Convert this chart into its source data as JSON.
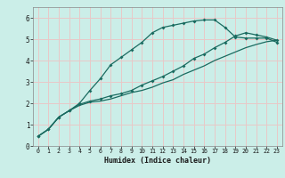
{
  "background_color": "#cbeee8",
  "grid_color": "#e8c8c8",
  "line_color": "#1a6b60",
  "xlabel": "Humidex (Indice chaleur)",
  "xlim": [
    -0.5,
    23.5
  ],
  "ylim": [
    0,
    6.5
  ],
  "yticks": [
    0,
    1,
    2,
    3,
    4,
    5,
    6
  ],
  "xticks": [
    0,
    1,
    2,
    3,
    4,
    5,
    6,
    7,
    8,
    9,
    10,
    11,
    12,
    13,
    14,
    15,
    16,
    17,
    18,
    19,
    20,
    21,
    22,
    23
  ],
  "line1_x": [
    0,
    1,
    2,
    3,
    4,
    5,
    6,
    7,
    8,
    9,
    10,
    11,
    12,
    13,
    14,
    15,
    16,
    17,
    18,
    19,
    20,
    21,
    22,
    23
  ],
  "line1_y": [
    0.45,
    0.78,
    1.35,
    1.65,
    2.0,
    2.6,
    3.15,
    3.8,
    4.15,
    4.5,
    4.85,
    5.3,
    5.55,
    5.65,
    5.75,
    5.85,
    5.9,
    5.9,
    5.55,
    5.1,
    5.05,
    5.05,
    5.05,
    4.85
  ],
  "line2_x": [
    0,
    1,
    2,
    3,
    4,
    5,
    6,
    7,
    8,
    9,
    10,
    11,
    12,
    13,
    14,
    15,
    16,
    17,
    18,
    19,
    20,
    21,
    22,
    23
  ],
  "line2_y": [
    0.45,
    0.78,
    1.35,
    1.65,
    1.95,
    2.1,
    2.2,
    2.35,
    2.45,
    2.6,
    2.85,
    3.05,
    3.25,
    3.5,
    3.75,
    4.1,
    4.3,
    4.6,
    4.85,
    5.15,
    5.3,
    5.2,
    5.1,
    4.95
  ],
  "line3_x": [
    0,
    1,
    2,
    3,
    4,
    5,
    6,
    7,
    8,
    9,
    10,
    11,
    12,
    13,
    14,
    15,
    16,
    17,
    18,
    19,
    20,
    21,
    22,
    23
  ],
  "line3_y": [
    0.45,
    0.78,
    1.35,
    1.65,
    1.9,
    2.05,
    2.1,
    2.2,
    2.35,
    2.5,
    2.6,
    2.75,
    2.95,
    3.1,
    3.35,
    3.55,
    3.75,
    4.0,
    4.2,
    4.4,
    4.6,
    4.75,
    4.88,
    4.95
  ]
}
